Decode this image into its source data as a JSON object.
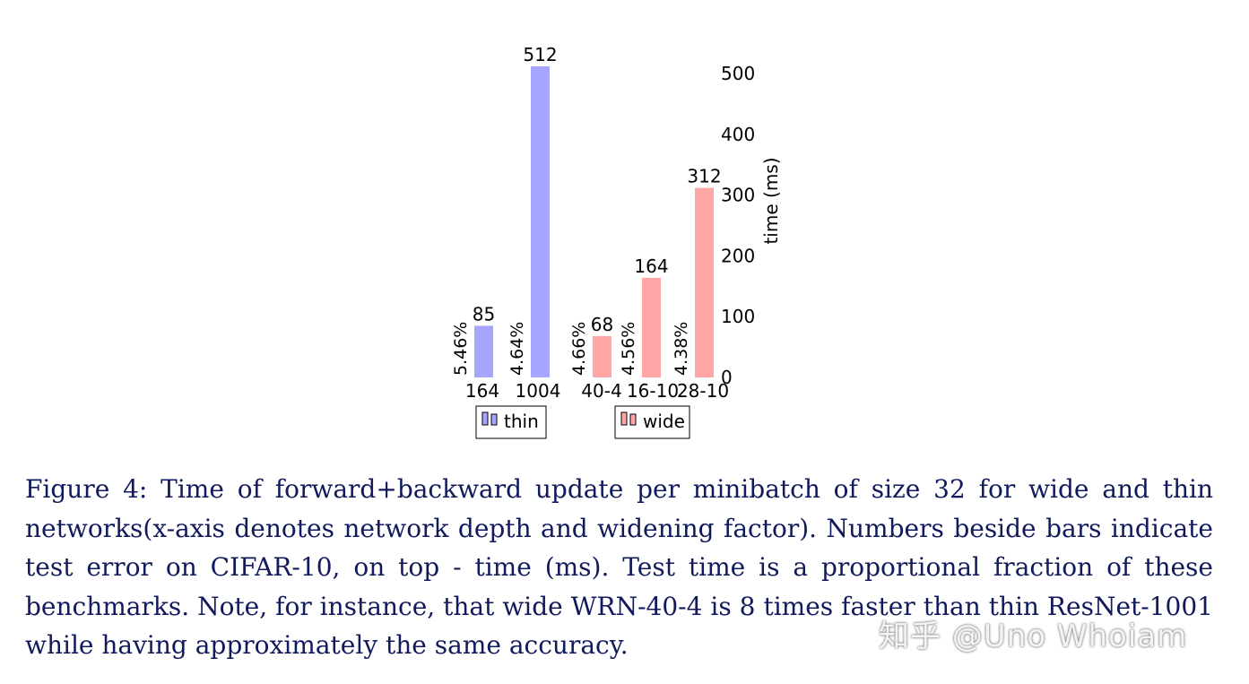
{
  "chart_data": {
    "type": "bar",
    "ylabel": "time (ms)",
    "ylim": [
      0,
      512
    ],
    "yticks": [
      "0",
      "100",
      "200",
      "300",
      "400",
      "500"
    ],
    "colors": {
      "thin": "#a6a6ff",
      "wide": "#ffa6a6"
    },
    "groups": [
      {
        "name": "thin",
        "categories": [
          "164",
          "1004"
        ],
        "values": [
          85,
          512
        ],
        "value_labels": [
          "85",
          "512"
        ],
        "error_labels": [
          "5.46%",
          "4.64%"
        ]
      },
      {
        "name": "wide",
        "categories": [
          "40-4",
          "16-10",
          "28-10"
        ],
        "values": [
          68,
          164,
          312
        ],
        "value_labels": [
          "68",
          "164",
          "312"
        ],
        "error_labels": [
          "4.66%",
          "4.56%",
          "4.38%"
        ]
      }
    ],
    "legend": [
      "thin",
      "wide"
    ]
  },
  "caption": "Figure 4: Time of forward+backward update per minibatch of size 32 for wide and thin networks(x-axis denotes network depth and widening factor). Numbers beside bars indicate test error on CIFAR-10, on top - time (ms). Test time is a proportional fraction of these benchmarks. Note, for instance, that wide WRN-40-4 is 8 times faster than thin ResNet-1001 while having approximately the same accuracy.",
  "watermark": "知乎 @Uno Whoiam"
}
